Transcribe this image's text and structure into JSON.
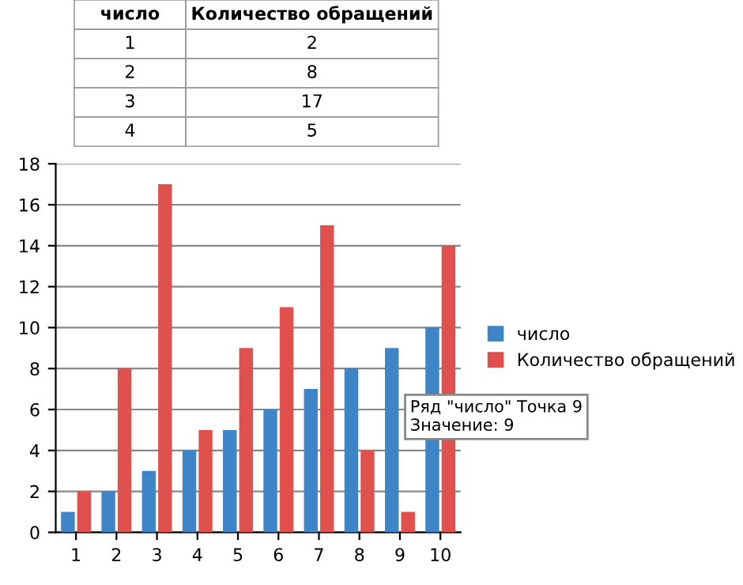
{
  "chart_data": {
    "type": "bar",
    "categories": [
      "1",
      "2",
      "3",
      "4",
      "5",
      "6",
      "7",
      "8",
      "9",
      "10"
    ],
    "series": [
      {
        "name": "число",
        "color": "#3d85c6",
        "values": [
          1,
          2,
          3,
          4,
          5,
          6,
          7,
          8,
          9,
          10
        ]
      },
      {
        "name": "Количество обращений",
        "color": "#e0504d",
        "values": [
          2,
          8,
          17,
          5,
          9,
          11,
          15,
          4,
          1,
          14
        ]
      }
    ],
    "ylim": [
      0,
      18
    ],
    "yticks": [
      0,
      2,
      4,
      6,
      8,
      10,
      12,
      14,
      16,
      18
    ],
    "grid": "y",
    "legend": "right",
    "annotations": [
      "число",
      "Количество обращений",
      "1",
      "2",
      "2",
      "8",
      "3",
      "17",
      "4",
      "5",
      "Ряд \"число\" Точка 9\nЗначение: 9"
    ]
  }
}
